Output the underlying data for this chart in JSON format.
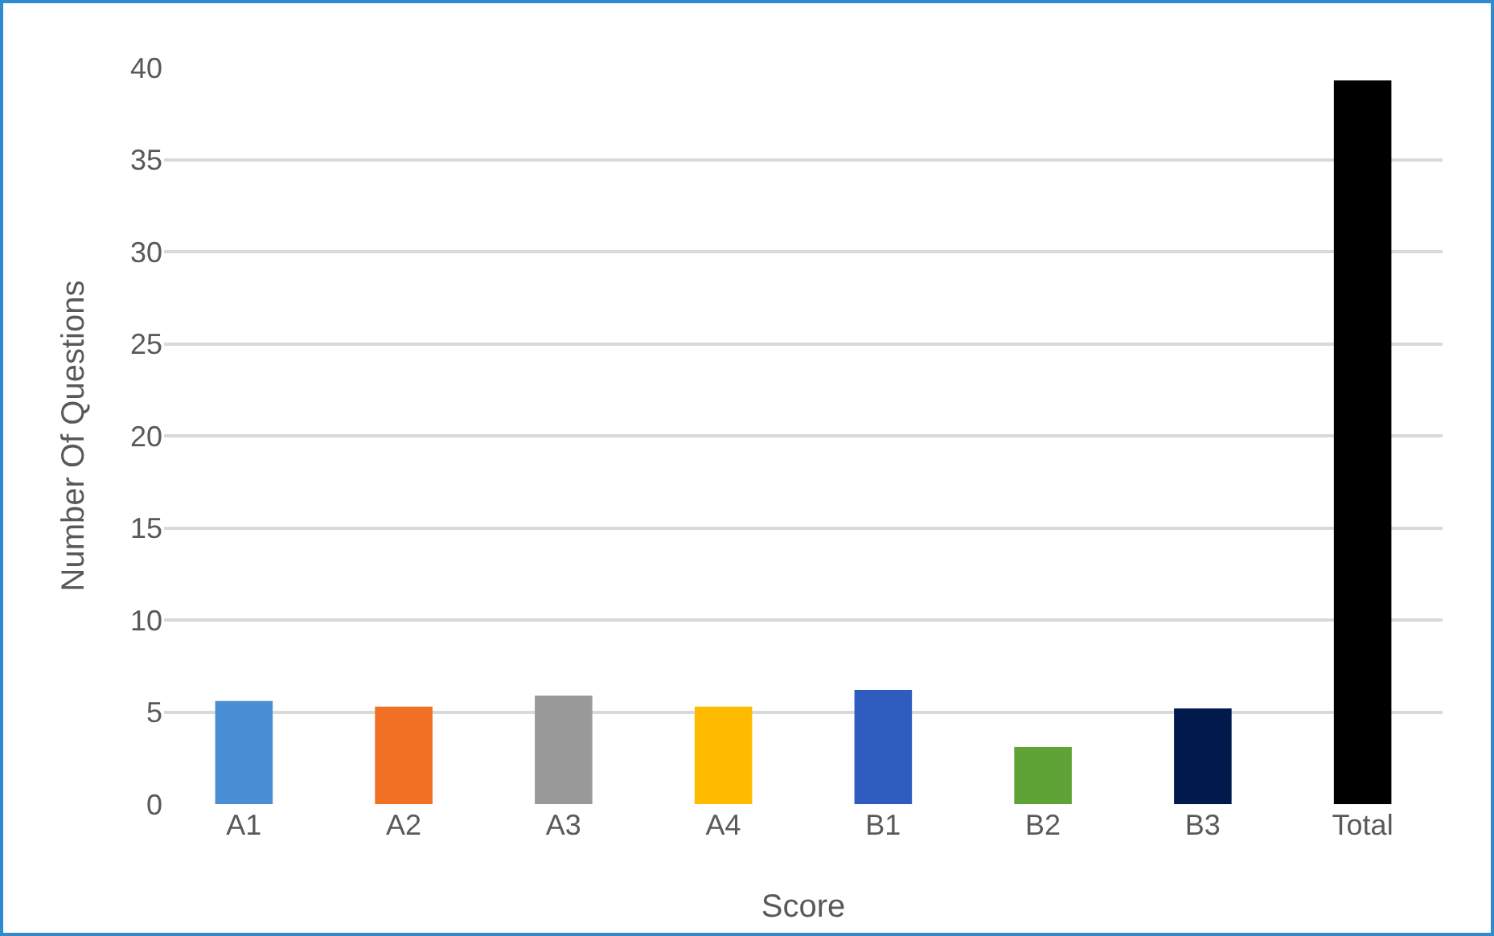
{
  "chart_data": {
    "type": "bar",
    "xlabel": "Score",
    "ylabel": "Number Of Questions",
    "categories": [
      "A1",
      "A2",
      "A3",
      "A4",
      "B1",
      "B2",
      "B3",
      "Total"
    ],
    "values": [
      5.6,
      5.3,
      5.9,
      5.3,
      6.2,
      3.1,
      5.2,
      39.3
    ],
    "colors": [
      "#4a8fd6",
      "#f07024",
      "#999999",
      "#ffbb00",
      "#2e5dbf",
      "#5fa336",
      "#001a4d",
      "#000000"
    ],
    "ylim": [
      0,
      40
    ],
    "yticks": [
      0,
      5,
      10,
      15,
      20,
      25,
      30,
      35,
      40
    ],
    "grid": "y",
    "legend": false
  }
}
